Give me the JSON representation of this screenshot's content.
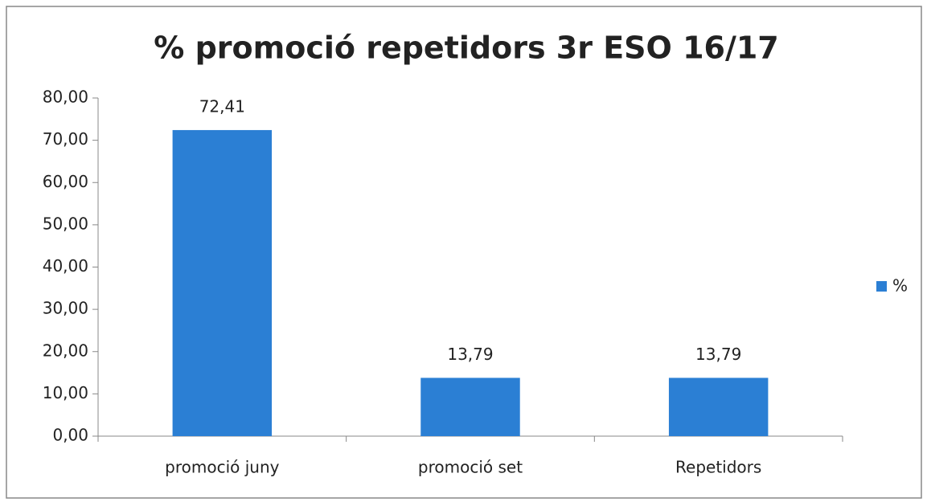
{
  "chart_data": {
    "type": "bar",
    "title": "% promoció repetidors 3r ESO 16/17",
    "categories": [
      "promoció juny",
      "promoció set",
      "Repetidors"
    ],
    "series": [
      {
        "name": "%",
        "color": "#2b7fd4",
        "values": [
          72.41,
          13.79,
          13.79
        ],
        "value_labels": [
          "72,41",
          "13,79",
          "13,79"
        ]
      }
    ],
    "ylim": [
      0,
      80
    ],
    "yticks": [
      {
        "value": 0,
        "label": "0,00"
      },
      {
        "value": 10,
        "label": "10,00"
      },
      {
        "value": 20,
        "label": "20,00"
      },
      {
        "value": 30,
        "label": "30,00"
      },
      {
        "value": 40,
        "label": "40,00"
      },
      {
        "value": 50,
        "label": "50,00"
      },
      {
        "value": 60,
        "label": "60,00"
      },
      {
        "value": 70,
        "label": "70,00"
      },
      {
        "value": 80,
        "label": "80,00"
      }
    ],
    "legend": "right"
  }
}
